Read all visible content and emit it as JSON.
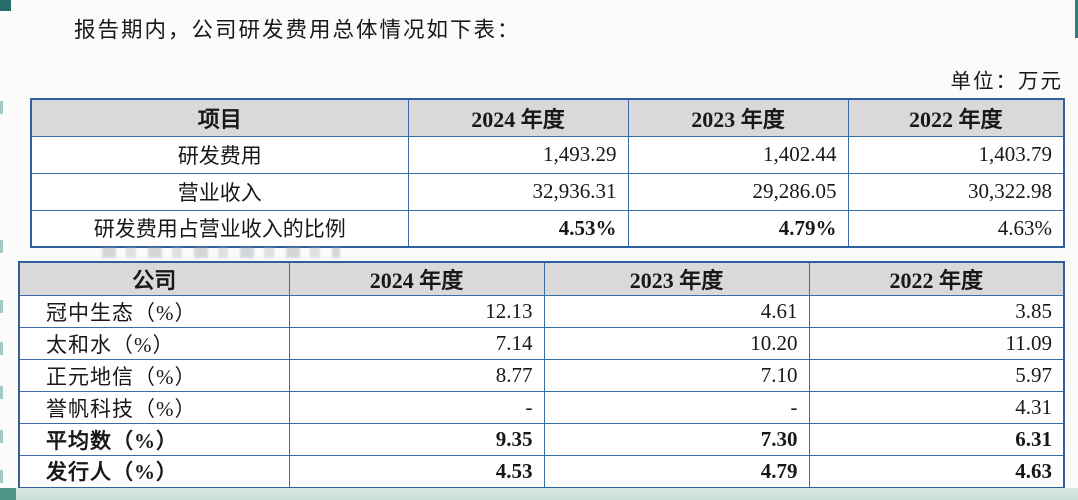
{
  "document": {
    "intro_text": "报告期内，公司研发费用总体情况如下表：",
    "unit_label": "单位：万元"
  },
  "summary_table": {
    "headers": [
      "项目",
      "2024 年度",
      "2023 年度",
      "2022 年度"
    ],
    "rows": [
      {
        "label": "研发费用",
        "values": [
          "1,493.29",
          "1,402.44",
          "1,403.79"
        ],
        "value_bold": [
          false,
          false,
          false
        ]
      },
      {
        "label": "营业收入",
        "values": [
          "32,936.31",
          "29,286.05",
          "30,322.98"
        ],
        "value_bold": [
          false,
          false,
          false
        ]
      },
      {
        "label": "研发费用占营业收入的比例",
        "values": [
          "4.53%",
          "4.79%",
          "4.63%"
        ],
        "value_bold": [
          true,
          true,
          false
        ]
      }
    ]
  },
  "peer_table": {
    "headers": [
      "公司",
      "2024 年度",
      "2023 年度",
      "2022 年度"
    ],
    "rows": [
      {
        "label": "冠中生态（%）",
        "values": [
          "12.13",
          "4.61",
          "3.85"
        ],
        "bold": false
      },
      {
        "label": "太和水（%）",
        "values": [
          "7.14",
          "10.20",
          "11.09"
        ],
        "bold": false
      },
      {
        "label": "正元地信（%）",
        "values": [
          "8.77",
          "7.10",
          "5.97"
        ],
        "bold": false
      },
      {
        "label": "誉帆科技（%）",
        "values": [
          "-",
          "-",
          "4.31"
        ],
        "bold": false
      },
      {
        "label": "平均数（%）",
        "values": [
          "9.35",
          "7.30",
          "6.31"
        ],
        "bold": true
      },
      {
        "label": "发行人（%）",
        "values": [
          "4.53",
          "4.79",
          "4.63"
        ],
        "bold": true
      }
    ]
  },
  "colors": {
    "table_border": "#3c6ca8",
    "table_border_outer": "#2f5f9e",
    "header_background": "#d9d9d9",
    "accent_teal": "#2a7a78"
  }
}
